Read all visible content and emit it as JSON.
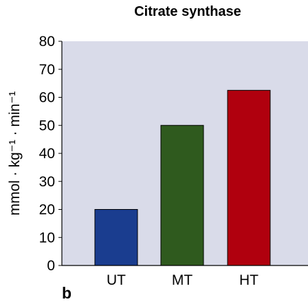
{
  "chart_data": {
    "type": "bar",
    "title": "Citrate synthase",
    "ylabel": "mmol · kg⁻¹ · min⁻¹",
    "xlabel": "",
    "categories": [
      "UT",
      "MT",
      "HT"
    ],
    "values": [
      20,
      50,
      62.5
    ],
    "ylim": [
      0,
      80
    ],
    "yticks": [
      0,
      10,
      20,
      30,
      40,
      50,
      60,
      70,
      80
    ],
    "bar_colors": [
      "#1a3d8f",
      "#2f5a1e",
      "#b0000e"
    ],
    "plot_background": "#d9dbe9",
    "grid": false,
    "panel_label": "b"
  }
}
